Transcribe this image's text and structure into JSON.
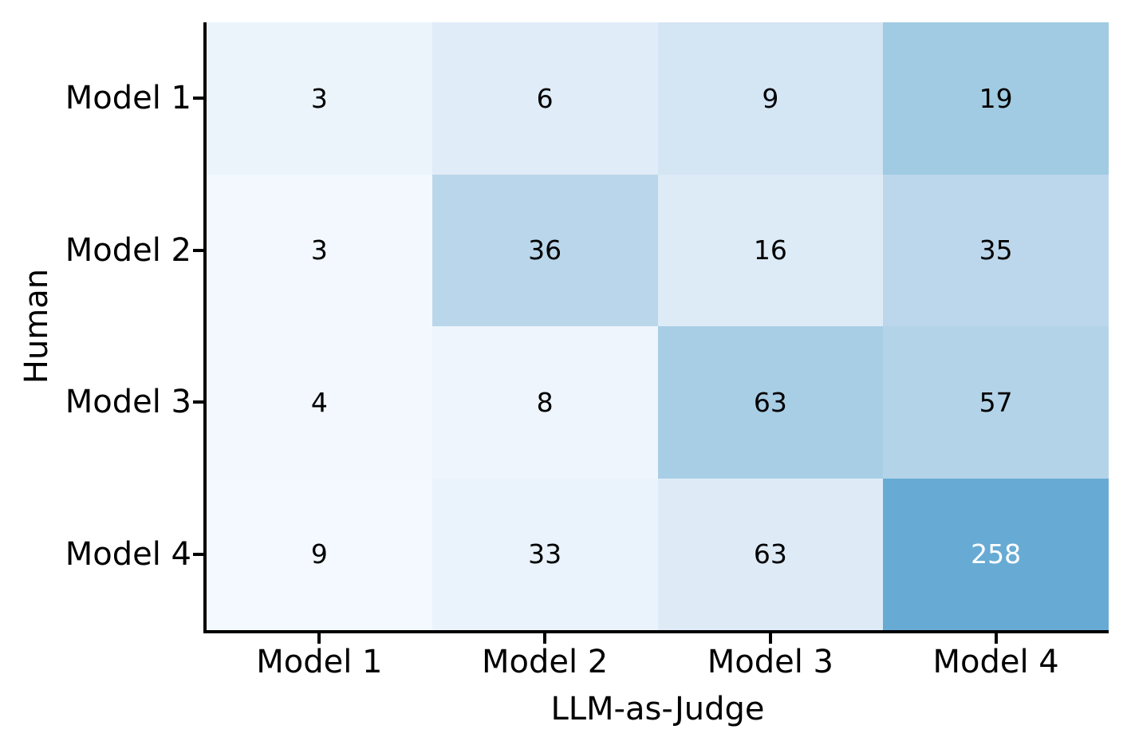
{
  "figure": {
    "background_color": "#ffffff",
    "axis_color": "#000000",
    "annotation_text_color": "#000000",
    "annotation_text_color_on_dark": "#ffffff"
  },
  "chart_data": {
    "type": "heatmap",
    "title": "",
    "xlabel": "LLM-as-Judge",
    "ylabel": "Human",
    "x_categories": [
      "Model 1",
      "Model 2",
      "Model 3",
      "Model 4"
    ],
    "y_categories": [
      "Model 1",
      "Model 2",
      "Model 3",
      "Model 4"
    ],
    "values": [
      [
        3,
        6,
        9,
        19
      ],
      [
        3,
        36,
        16,
        35
      ],
      [
        4,
        8,
        63,
        57
      ],
      [
        9,
        33,
        63,
        258
      ]
    ],
    "cell_colors": [
      [
        "#ebf4fb",
        "#e0ecf7",
        "#d4e5f4",
        "#a0cbe2"
      ],
      [
        "#f2f8fd",
        "#bad6eb",
        "#ddebf7",
        "#bcd7ec"
      ],
      [
        "#f3f8fe",
        "#eef5fc",
        "#a8cee5",
        "#b3d3e8"
      ],
      [
        "#f3f9fe",
        "#eaf3fb",
        "#deebf7",
        "#67abd4"
      ]
    ],
    "cell_text_colors": [
      [
        "#000000",
        "#000000",
        "#000000",
        "#000000"
      ],
      [
        "#000000",
        "#000000",
        "#000000",
        "#000000"
      ],
      [
        "#000000",
        "#000000",
        "#000000",
        "#000000"
      ],
      [
        "#000000",
        "#000000",
        "#000000",
        "#ffffff"
      ]
    ],
    "colormap": "Blues",
    "grid": false,
    "legend": "none",
    "annotations_shown": true
  }
}
